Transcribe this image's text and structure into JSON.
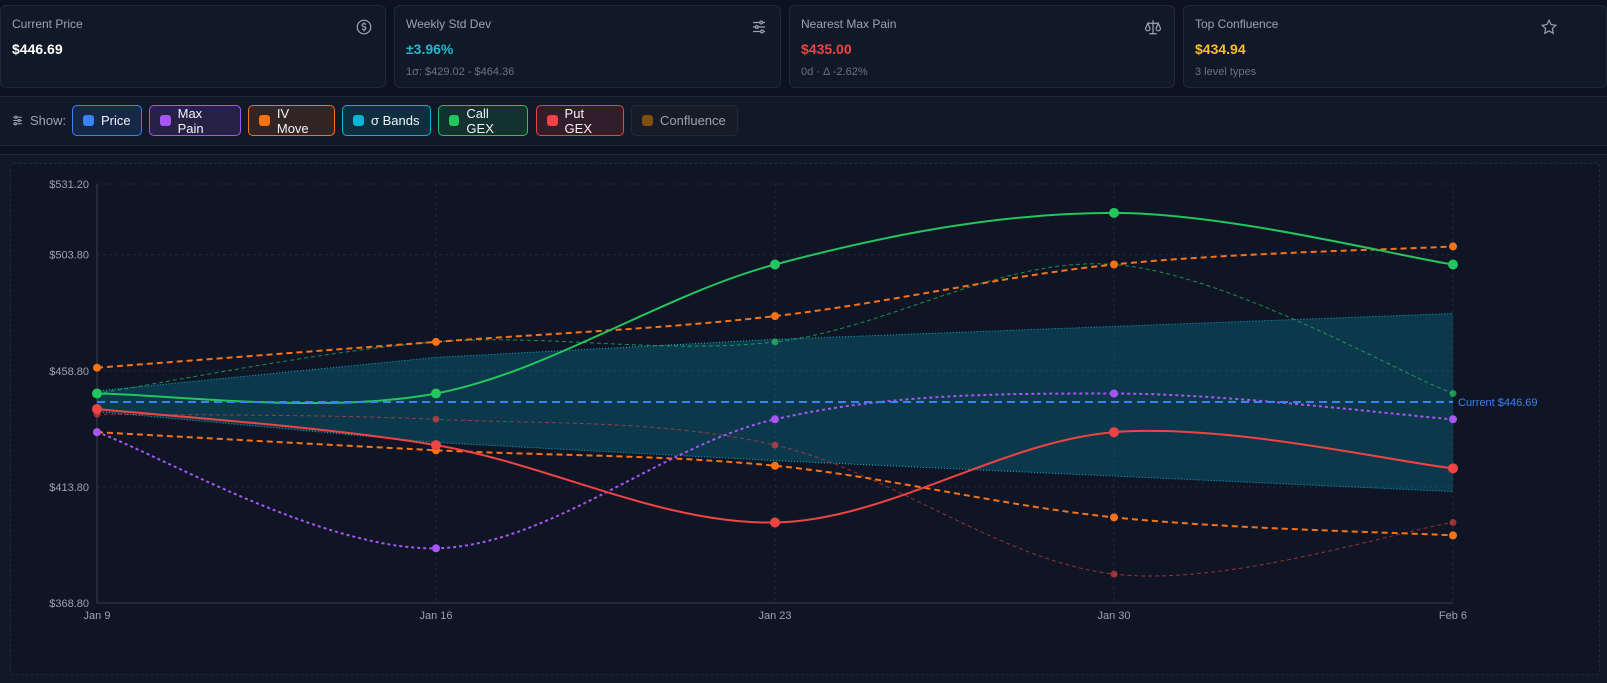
{
  "cards": [
    {
      "label": "Current Price",
      "value": "$446.69",
      "sub": "",
      "color": "#ffffff",
      "icon": "dollar-circle-icon"
    },
    {
      "label": "Weekly Std Dev",
      "value": "±3.96%",
      "sub": "1σ: $429.02 - $464.36",
      "color": "#22b8cf",
      "icon": "sliders-icon"
    },
    {
      "label": "Nearest Max Pain",
      "value": "$435.00",
      "sub": "0d · Δ -2.62%",
      "color": "#ef4444",
      "icon": "scale-icon"
    },
    {
      "label": "Top Confluence",
      "value": "$434.94",
      "sub": "3 level types",
      "color": "#fbbf24",
      "icon": "star-icon"
    }
  ],
  "toolbar": {
    "show_label": "Show:",
    "toggles": [
      {
        "label": "Price",
        "color": "#3b82f6",
        "active": true
      },
      {
        "label": "Max Pain",
        "color": "#a855f7",
        "active": true
      },
      {
        "label": "IV Move",
        "color": "#f97316",
        "active": true
      },
      {
        "label": "σ Bands",
        "color": "#06b6d4",
        "active": true
      },
      {
        "label": "Call GEX",
        "color": "#22c55e",
        "active": true
      },
      {
        "label": "Put GEX",
        "color": "#ef4444",
        "active": true
      },
      {
        "label": "Confluence",
        "color": "#a16207",
        "active": false
      }
    ]
  },
  "chart_data": {
    "type": "line",
    "x": [
      "Jan 9",
      "Jan 16",
      "Jan 23",
      "Jan 30",
      "Feb 6"
    ],
    "y_ticks": [
      "$531.20",
      "$503.80",
      "$458.80",
      "$413.80",
      "$368.80"
    ],
    "y_tick_values": [
      531.2,
      503.8,
      458.8,
      413.8,
      368.8
    ],
    "ylim": [
      368.8,
      531.2
    ],
    "current_price": 446.69,
    "current_label": "Current $446.69",
    "grid": true,
    "series": [
      {
        "key": "sigma_upper",
        "color": "#06b6d4",
        "values": [
          451,
          464,
          471,
          476,
          481
        ]
      },
      {
        "key": "sigma_lower",
        "color": "#06b6d4",
        "values": [
          443,
          431,
          424,
          418,
          412
        ]
      },
      {
        "key": "call_gex",
        "color": "#22c55e",
        "values": [
          450,
          450,
          500,
          520,
          500
        ]
      },
      {
        "key": "call_gex_secondary",
        "color": "#22c55e",
        "values": [
          450,
          470,
          470,
          500,
          450
        ]
      },
      {
        "key": "put_gex",
        "color": "#ef4444",
        "values": [
          444,
          430,
          400,
          435,
          421
        ]
      },
      {
        "key": "put_gex_secondary",
        "color": "#ef4444",
        "values": [
          442,
          440,
          430,
          380,
          400
        ]
      },
      {
        "key": "max_pain",
        "color": "#a855f7",
        "values": [
          435,
          390,
          440,
          450,
          440
        ]
      },
      {
        "key": "iv_upper",
        "color": "#f97316",
        "values": [
          460,
          470,
          480,
          500,
          507
        ]
      },
      {
        "key": "iv_lower",
        "color": "#f97316",
        "values": [
          435,
          428,
          422,
          402,
          395
        ]
      }
    ]
  }
}
